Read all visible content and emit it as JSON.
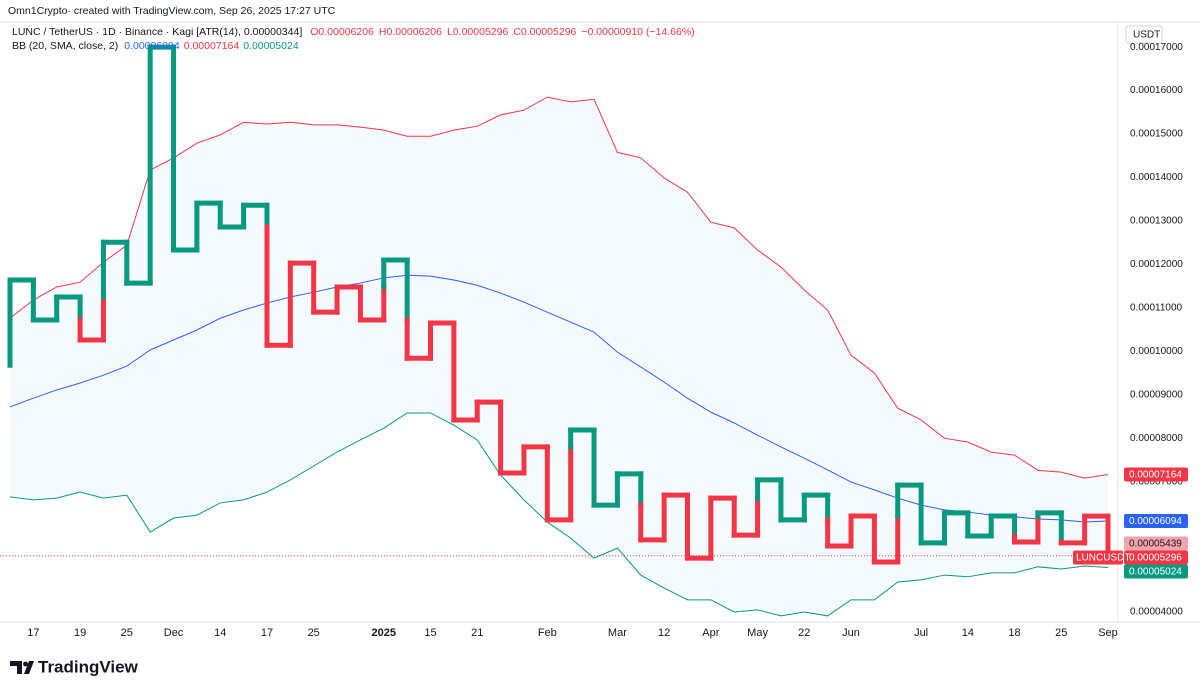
{
  "header": {
    "attribution": "Omn1Crypto· created with TradingView.com, Sep 26, 2025 17:27 UTC",
    "symbol": "LUNC / TetherUS · 1D · Binance · Kagi [ATR(14), 0.00000344]",
    "ohlc": [
      {
        "key": "O",
        "value": "0.00006206"
      },
      {
        "key": "H",
        "value": "0.00006206"
      },
      {
        "key": "L",
        "value": "0.00005296"
      },
      {
        "key": "C",
        "value": "0.00005296"
      }
    ],
    "change": "−0.00000910 (−14.66%)",
    "indicator": "BB (20, SMA, close, 2)",
    "indicator_values": [
      {
        "text": "0.00006094",
        "color": "#2962ff"
      },
      {
        "text": "0.00007164",
        "color": "#f23645"
      },
      {
        "text": "0.00005024",
        "color": "#089981"
      }
    ]
  },
  "chart_data": {
    "type": "kagi",
    "currency": "USDT",
    "symbol_tag": "LUNCUSDT",
    "categories": [
      null,
      "17",
      null,
      "19",
      null,
      "25",
      null,
      "Dec",
      null,
      "14",
      null,
      "17",
      null,
      "25",
      null,
      null,
      "2025",
      null,
      "15",
      null,
      "21",
      null,
      null,
      "Feb",
      null,
      null,
      "Mar",
      null,
      "12",
      null,
      "Apr",
      null,
      "May",
      null,
      "22",
      null,
      "Jun",
      null,
      null,
      "Jul",
      null,
      "14",
      null,
      "18",
      null,
      "25",
      null,
      "Sep"
    ],
    "start": 9.68e-05,
    "values": [
      0.0001164,
      0.0001072,
      0.0001125,
      0.0001026,
      0.0001251,
      0.0001157,
      0.00017,
      0.0001233,
      0.0001341,
      0.0001286,
      0.0001336,
      0.0001014,
      0.0001203,
      0.000109,
      0.0001148,
      0.0001072,
      0.000121,
      9.84e-05,
      0.0001065,
      8.42e-05,
      8.83e-05,
      7.2e-05,
      7.8e-05,
      6.12e-05,
      8.19e-05,
      6.46e-05,
      7.18e-05,
      5.66e-05,
      6.69e-05,
      5.24e-05,
      6.62e-05,
      5.77e-05,
      7.04e-05,
      6.12e-05,
      6.69e-05,
      5.52e-05,
      6.21e-05,
      5.15e-05,
      6.92e-05,
      5.59e-05,
      6.28e-05,
      5.75e-05,
      6.21e-05,
      5.61e-05,
      6.28e-05,
      5.59e-05,
      6.206e-05,
      5.296e-05
    ],
    "up_color": "#089981",
    "down_color": "#f23645",
    "series": [
      {
        "color": "#f23645",
        "values": [
          0.0001076,
          0.0001118,
          0.0001148,
          0.0001159,
          0.0001205,
          0.0001244,
          0.0001417,
          0.0001445,
          0.0001479,
          0.0001498,
          0.0001527,
          0.0001523,
          0.0001527,
          0.0001521,
          0.0001521,
          0.0001516,
          0.0001509,
          0.0001495,
          0.0001495,
          0.0001509,
          0.0001518,
          0.0001544,
          0.0001555,
          0.0001585,
          0.0001574,
          0.000158,
          0.0001458,
          0.0001445,
          0.0001399,
          0.0001366,
          0.0001297,
          0.0001284,
          0.0001233,
          0.0001194,
          0.0001141,
          0.0001095,
          9.91e-05,
          9.5e-05,
          8.69e-05,
          8.42e-05,
          8e-05,
          7.91e-05,
          7.68e-05,
          7.61e-05,
          7.26e-05,
          7.22e-05,
          7.08e-05,
          7.164e-05
        ]
      },
      {
        "color": "#2962ff",
        "values": [
          8.72e-05,
          8.92e-05,
          9.11e-05,
          9.27e-05,
          9.45e-05,
          9.66e-05,
          0.0001003,
          0.0001026,
          0.0001049,
          0.0001076,
          0.0001095,
          0.0001111,
          0.0001125,
          0.0001136,
          0.0001148,
          0.0001157,
          0.0001169,
          0.0001175,
          0.0001173,
          0.0001164,
          0.0001152,
          0.0001134,
          0.0001113,
          0.000109,
          0.0001067,
          0.0001044,
          9.98e-05,
          9.64e-05,
          9.29e-05,
          8.92e-05,
          8.6e-05,
          8.35e-05,
          8.07e-05,
          7.8e-05,
          7.54e-05,
          7.27e-05,
          6.99e-05,
          6.81e-05,
          6.62e-05,
          6.46e-05,
          6.35e-05,
          6.3e-05,
          6.23e-05,
          6.19e-05,
          6.14e-05,
          6.12e-05,
          6.07e-05,
          6.094e-05
        ]
      },
      {
        "color": "#089981",
        "values": [
          6.65e-05,
          6.58e-05,
          6.62e-05,
          6.76e-05,
          6.62e-05,
          6.69e-05,
          5.84e-05,
          6.16e-05,
          6.23e-05,
          6.51e-05,
          6.58e-05,
          6.76e-05,
          7.04e-05,
          7.36e-05,
          7.68e-05,
          7.96e-05,
          8.23e-05,
          8.58e-05,
          8.58e-05,
          8.3e-05,
          7.96e-05,
          7.15e-05,
          6.58e-05,
          6.07e-05,
          5.7e-05,
          5.24e-05,
          5.47e-05,
          4.85e-05,
          4.55e-05,
          4.28e-05,
          4.28e-05,
          4e-05,
          4.05e-05,
          3.91e-05,
          4e-05,
          3.91e-05,
          4.28e-05,
          4.28e-05,
          4.69e-05,
          4.74e-05,
          4.85e-05,
          4.81e-05,
          4.9e-05,
          4.9e-05,
          5.04e-05,
          4.99e-05,
          5.06e-05,
          5.024e-05
        ]
      }
    ],
    "ylim": [
      3.77e-05,
      0.0001744
    ],
    "yticks": [
      {
        "value": 4e-05,
        "label": "0.00004000"
      },
      {
        "value": 5e-05,
        "label": "0.00005000"
      },
      {
        "value": 6e-05,
        "label": "0.00006000"
      },
      {
        "value": 7e-05,
        "label": "0.00007000"
      },
      {
        "value": 8e-05,
        "label": "0.00008000"
      },
      {
        "value": 9e-05,
        "label": "0.00009000"
      },
      {
        "value": 0.0001,
        "label": "0.00010000"
      },
      {
        "value": 0.00011,
        "label": "0.00011000"
      },
      {
        "value": 0.00012,
        "label": "0.00012000"
      },
      {
        "value": 0.00013,
        "label": "0.00013000"
      },
      {
        "value": 0.00014,
        "label": "0.00014000"
      },
      {
        "value": 0.00015,
        "label": "0.00015000"
      },
      {
        "value": 0.00016,
        "label": "0.00016000"
      },
      {
        "value": 0.00017,
        "label": "0.00017000"
      }
    ],
    "grid": false,
    "price_labels": [
      {
        "value": 7.164e-05,
        "label": "0.00007164",
        "color": "#f23645"
      },
      {
        "value": 6.094e-05,
        "label": "0.00006094",
        "color": "#2962ff"
      },
      {
        "value": 5.439e-05,
        "label": "0.00005439",
        "color": "#f5a3ab"
      },
      {
        "value": 5.296e-05,
        "label": "0.00005296",
        "color": "#f23645"
      },
      {
        "value": 5.024e-05,
        "label": "0.00005024",
        "color": "#089981"
      }
    ],
    "last_price": 5.296e-05
  },
  "footer": {
    "brand": "TradingView"
  }
}
